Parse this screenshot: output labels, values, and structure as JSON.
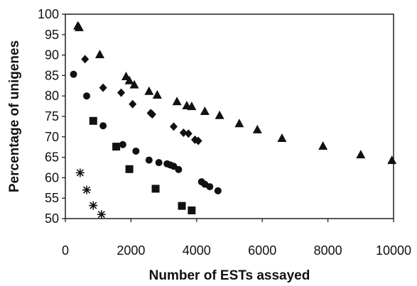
{
  "chart_data": {
    "type": "scatter",
    "title": "",
    "xlabel": "Number of ESTs assayed",
    "ylabel": "Percentage of unigenes",
    "xlim": [
      0,
      10000
    ],
    "ylim": [
      50,
      100
    ],
    "x_ticks": [
      0,
      2000,
      4000,
      6000,
      8000,
      10000
    ],
    "y_ticks": [
      50,
      55,
      60,
      65,
      70,
      75,
      80,
      85,
      90,
      95,
      100
    ],
    "x_tick_labels": [
      "0",
      "2000",
      "4000",
      "6000",
      "8000",
      "10000"
    ],
    "y_tick_labels": [
      "50",
      "55",
      "60",
      "65",
      "70",
      "75",
      "80",
      "85",
      "90",
      "95",
      "100"
    ],
    "grid": false,
    "legend": "none",
    "series": [
      {
        "marker": "triangle",
        "x": [
          380,
          420,
          1050,
          1850,
          1950,
          2100,
          2550,
          2800,
          3400,
          3700,
          3850,
          4250,
          4700,
          5300,
          5850,
          6600,
          7850,
          9000,
          9950
        ],
        "y": [
          97.2,
          96.8,
          90.2,
          84.8,
          83.8,
          82.8,
          81.2,
          80.3,
          78.7,
          77.7,
          77.5,
          76.3,
          75.3,
          73.3,
          71.8,
          69.7,
          67.8,
          65.7,
          64.3
        ]
      },
      {
        "marker": "diamond",
        "x": [
          600,
          1150,
          1700,
          2050,
          2600,
          2650,
          3300,
          3600,
          3750,
          3950,
          4050
        ],
        "y": [
          89.0,
          82.0,
          80.8,
          78.0,
          75.8,
          75.5,
          72.5,
          71.0,
          70.8,
          69.3,
          69.0
        ]
      },
      {
        "marker": "circle",
        "x": [
          250,
          650,
          1150,
          1750,
          2150,
          2550,
          2850,
          3100,
          3200,
          3300,
          3450,
          4150,
          4250,
          4400,
          4650
        ],
        "y": [
          85.3,
          80.0,
          72.7,
          68.1,
          66.5,
          64.3,
          63.7,
          63.4,
          63.1,
          62.8,
          62.0,
          59.0,
          58.4,
          57.8,
          56.8
        ]
      },
      {
        "marker": "square",
        "x": [
          850,
          1550,
          1950,
          2750,
          3550,
          3850
        ],
        "y": [
          73.9,
          67.6,
          62.1,
          57.3,
          53.1,
          52.0
        ]
      },
      {
        "marker": "star",
        "x": [
          450,
          650,
          850,
          1100
        ],
        "y": [
          61.2,
          57.0,
          53.2,
          51.0
        ]
      }
    ]
  }
}
